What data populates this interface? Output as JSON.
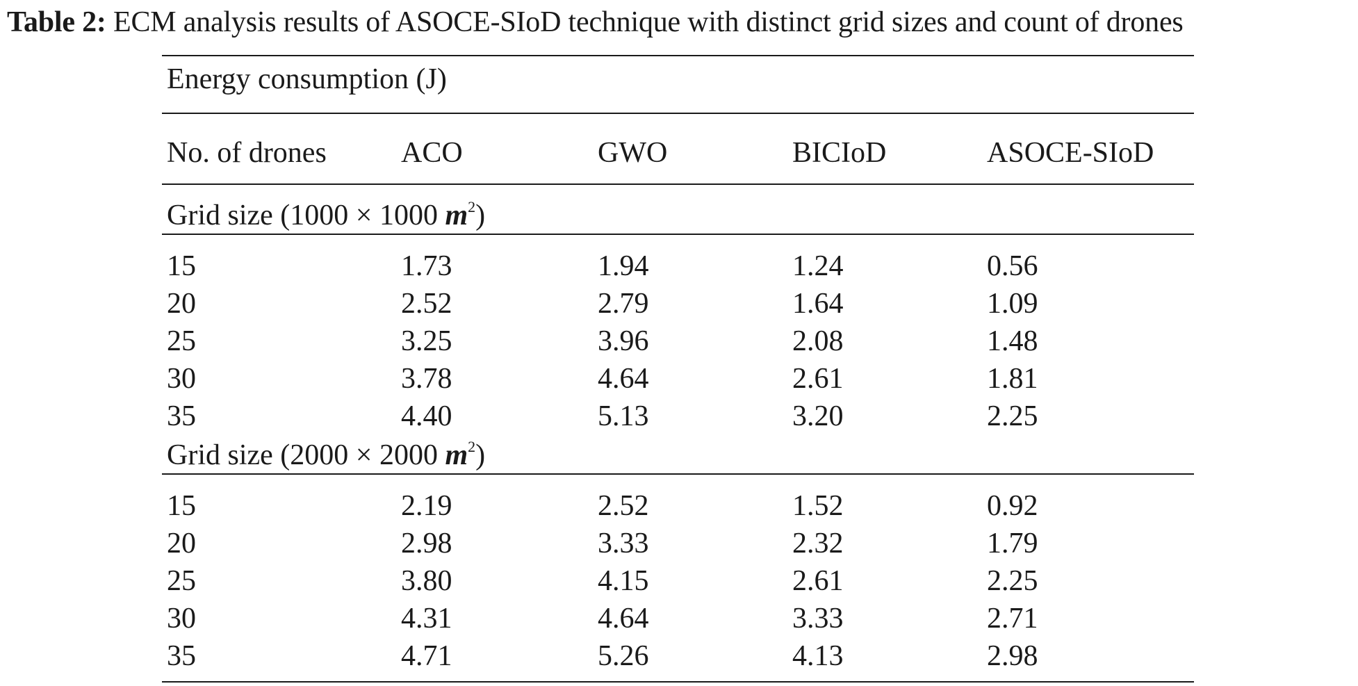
{
  "caption": {
    "label": "Table 2:",
    "text": "ECM analysis results of ASOCE-SIoD technique with distinct grid sizes and count of drones"
  },
  "table": {
    "group_header": "Energy consumption (J)",
    "columns": [
      "No. of drones",
      "ACO",
      "GWO",
      "BICIoD",
      "ASOCE-SIoD"
    ],
    "sections": [
      {
        "label_prefix": "Grid size (1000 × 1000 ",
        "label_unit": "m",
        "label_exp": "2",
        "label_suffix": ")",
        "rows": [
          [
            "15",
            "1.73",
            "1.94",
            "1.24",
            "0.56"
          ],
          [
            "20",
            "2.52",
            "2.79",
            "1.64",
            "1.09"
          ],
          [
            "25",
            "3.25",
            "3.96",
            "2.08",
            "1.48"
          ],
          [
            "30",
            "3.78",
            "4.64",
            "2.61",
            "1.81"
          ],
          [
            "35",
            "4.40",
            "5.13",
            "3.20",
            "2.25"
          ]
        ]
      },
      {
        "label_prefix": "Grid size (2000 × 2000 ",
        "label_unit": "m",
        "label_exp": "2",
        "label_suffix": ")",
        "rows": [
          [
            "15",
            "2.19",
            "2.52",
            "1.52",
            "0.92"
          ],
          [
            "20",
            "2.98",
            "3.33",
            "2.32",
            "1.79"
          ],
          [
            "25",
            "3.80",
            "4.15",
            "2.61",
            "2.25"
          ],
          [
            "30",
            "4.31",
            "4.64",
            "3.33",
            "2.71"
          ],
          [
            "35",
            "4.71",
            "5.26",
            "4.13",
            "2.98"
          ]
        ]
      }
    ]
  }
}
